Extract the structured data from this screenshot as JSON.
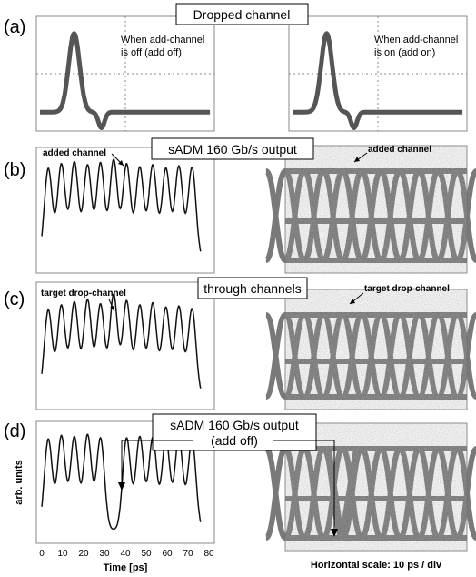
{
  "figure": {
    "panel_labels": [
      "(a)",
      "(b)",
      "(c)",
      "(d)"
    ],
    "boxes": {
      "a": "Dropped channel",
      "b": "sADM 160 Gb/s output",
      "c": "through channels",
      "d_line1": "sADM 160 Gb/s output",
      "d_line2": "(add off)"
    },
    "annotations": {
      "add_off_1": "When add-channel",
      "add_off_2": "is off (add off)",
      "add_on_1": "When add-channel",
      "add_on_2": "is on (add on)",
      "added_channel_left": "added channel",
      "added_channel_right": "added channel",
      "target_drop_left": "target drop-channel",
      "target_drop_right": "target drop-channel"
    },
    "horizontal_scale": "Horizontal scale: 10 ps / div",
    "colors": {
      "trace": "#111111",
      "scope_trace": "#555555",
      "grid": "#888888"
    }
  },
  "chart_data": [
    {
      "panel": "(a)",
      "type": "line",
      "subtitle": "When add-channel is off (add off)",
      "x": [
        0,
        1,
        2,
        3,
        4,
        5,
        6,
        7,
        8,
        9,
        10
      ],
      "values": [
        0.05,
        0.1,
        0.95,
        0.12,
        -0.15,
        0.05,
        0.04,
        0.05,
        0.04,
        0.05,
        0.05
      ]
    },
    {
      "panel": "(a)",
      "type": "line",
      "subtitle": "When add-channel is on (add on)",
      "x": [
        0,
        1,
        2,
        3,
        4,
        5,
        6,
        7,
        8,
        9,
        10
      ],
      "values": [
        0.05,
        0.1,
        0.96,
        0.12,
        -0.15,
        0.05,
        0.04,
        0.05,
        0.04,
        0.05,
        0.05
      ]
    },
    {
      "panel": "(b)",
      "type": "line",
      "xlim": [
        0,
        80
      ],
      "x": [
        3.1,
        9.4,
        15.6,
        21.9,
        28.1,
        34.4,
        40.6,
        46.9,
        53.1,
        59.4,
        65.6,
        71.9
      ],
      "values": [
        0.92,
        0.96,
        0.98,
        0.95,
        0.97,
        1.0,
        0.96,
        0.93,
        0.95,
        0.92,
        0.94,
        0.93
      ]
    },
    {
      "panel": "(c)",
      "type": "line",
      "xlim": [
        0,
        80
      ],
      "x": [
        3.1,
        9.4,
        15.6,
        21.9,
        28.1,
        34.4,
        40.6,
        46.9,
        53.1,
        59.4,
        65.6,
        71.9
      ],
      "values": [
        0.86,
        0.9,
        0.93,
        0.95,
        0.91,
        1.0,
        0.94,
        0.9,
        0.92,
        0.88,
        0.89,
        0.87
      ]
    },
    {
      "panel": "(d)",
      "type": "line",
      "xlim": [
        0,
        80
      ],
      "xlabel": "Time [ps]",
      "ylabel": "arb. units",
      "xticks": [
        "0",
        "10",
        "20",
        "30",
        "40",
        "50",
        "60",
        "70",
        "80"
      ],
      "x": [
        3.1,
        9.4,
        15.6,
        21.9,
        28.1,
        34.4,
        40.6,
        46.9,
        53.1,
        59.4,
        65.6,
        71.9
      ],
      "values": [
        0.95,
        0.98,
        0.97,
        0.99,
        0.96,
        0.06,
        0.96,
        0.97,
        0.96,
        0.95,
        0.96,
        0.94
      ]
    }
  ]
}
